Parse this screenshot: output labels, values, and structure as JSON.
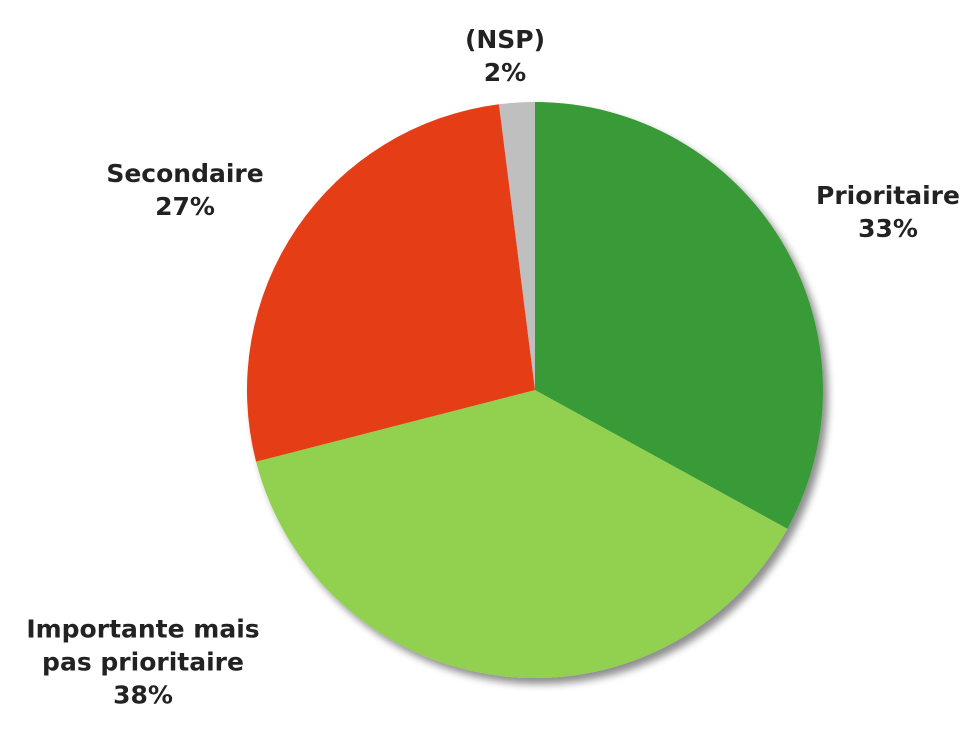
{
  "chart_data": {
    "type": "pie",
    "categories": [
      "Prioritaire",
      "Importante mais pas prioritaire",
      "Secondaire",
      "(NSP)"
    ],
    "values": [
      33,
      38,
      27,
      2
    ],
    "value_labels": [
      "33%",
      "38%",
      "27%",
      "2%"
    ],
    "colors": [
      "#379b37",
      "#92d050",
      "#e53e14",
      "#bfbfbf"
    ]
  }
}
